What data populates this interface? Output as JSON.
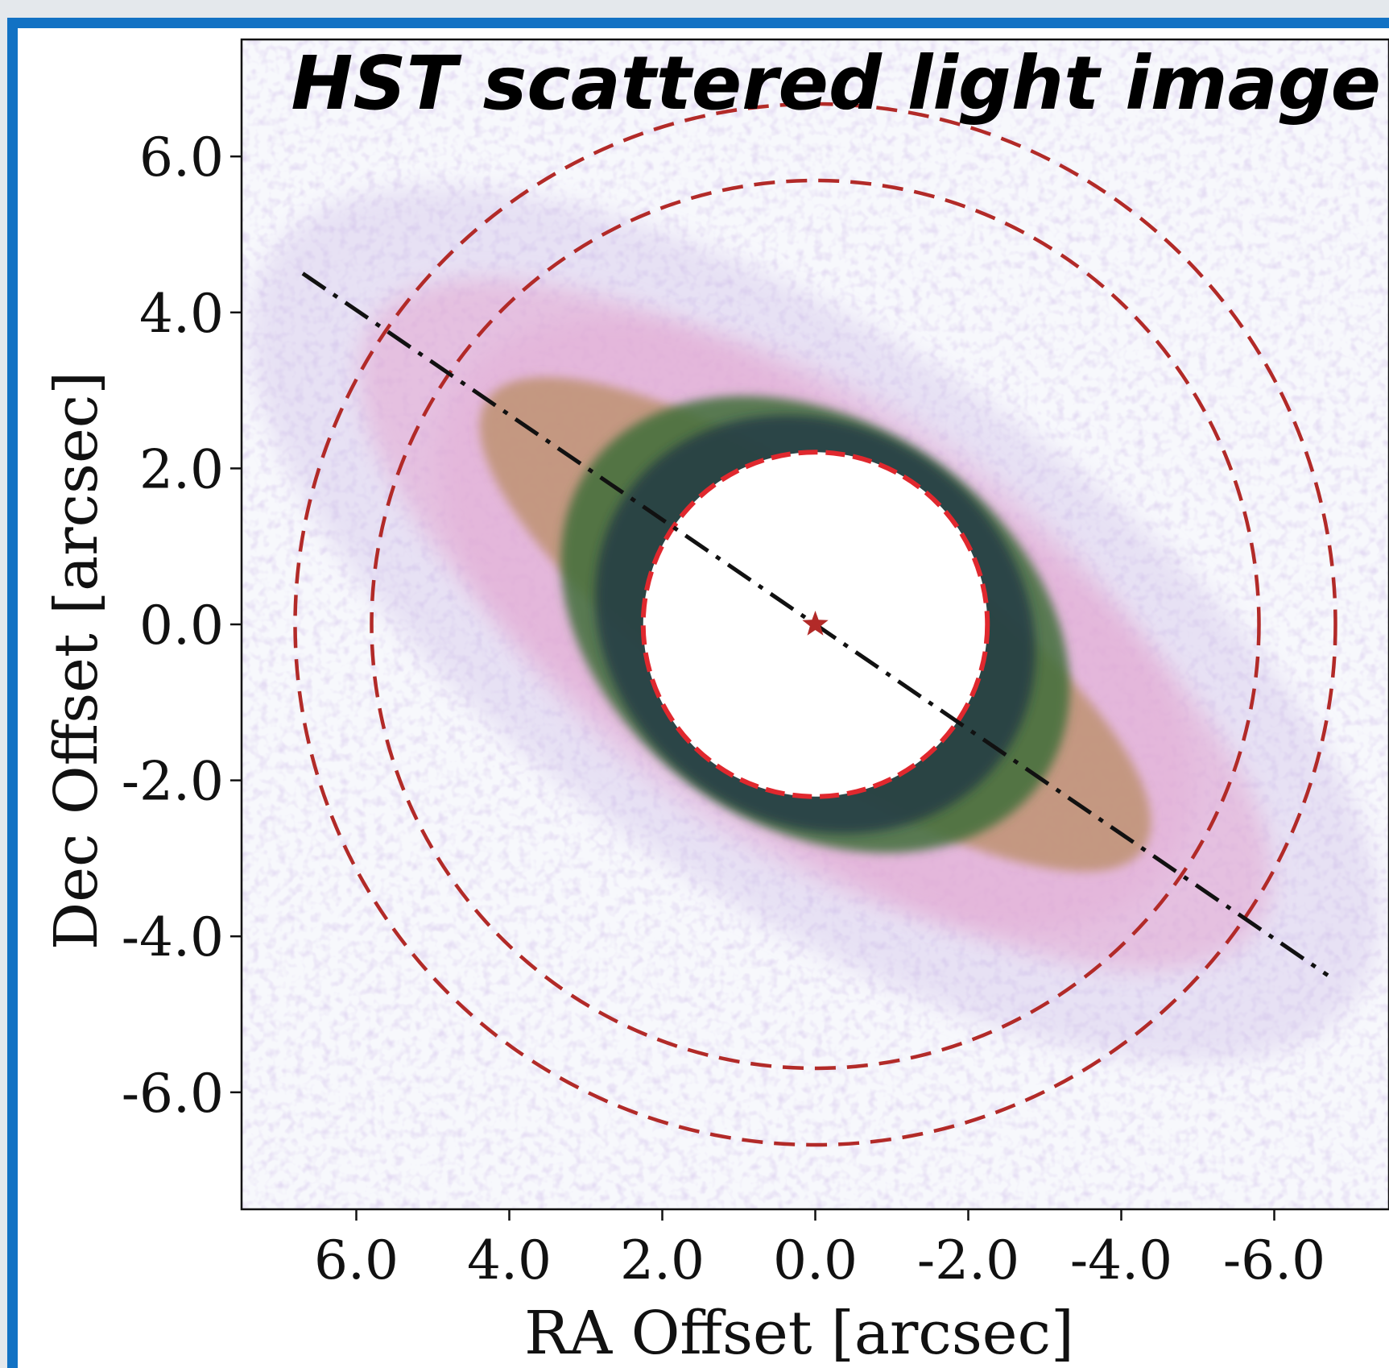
{
  "chart_data": {
    "type": "heatmap",
    "title": "HST scattered light image",
    "xlabel": "RA Offset [arcsec]",
    "ylabel": "Dec Offset [arcsec]",
    "xlim": [
      7.5,
      -7.5
    ],
    "ylim": [
      -7.5,
      7.5
    ],
    "x_reversed": true,
    "xticks": [
      6.0,
      4.0,
      2.0,
      0.0,
      -2.0,
      -4.0,
      -6.0
    ],
    "xtick_labels": [
      "6.0",
      "4.0",
      "2.0",
      "0.0",
      "-2.0",
      "-4.0",
      "-6.0"
    ],
    "yticks": [
      6.0,
      4.0,
      2.0,
      0.0,
      -2.0,
      -4.0,
      -6.0
    ],
    "ytick_labels": [
      "6.0",
      "4.0",
      "2.0",
      "0.0",
      "-2.0",
      "-4.0",
      "-6.0"
    ],
    "star": {
      "x": 0.0,
      "y": 0.0
    },
    "masked_circle_radius": 2.25,
    "dashed_circles": [
      {
        "radius": 2.25,
        "color": "#e0282e"
      },
      {
        "radius": 5.8,
        "color": "#b22a28"
      },
      {
        "radius": 6.8,
        "color": "#b22a28"
      }
    ],
    "disk_axis": {
      "x": [
        6.7,
        -6.7
      ],
      "y": [
        4.5,
        -4.5
      ]
    },
    "grid": false,
    "colors": {
      "faint": "#c9b6e6",
      "halo": "#e3a6d0",
      "mid": "#b98d63",
      "bright": "#3e6f3b",
      "brightest": "#1f3a44",
      "circle_dash": "#b22a28",
      "star": "#b22a28"
    }
  }
}
